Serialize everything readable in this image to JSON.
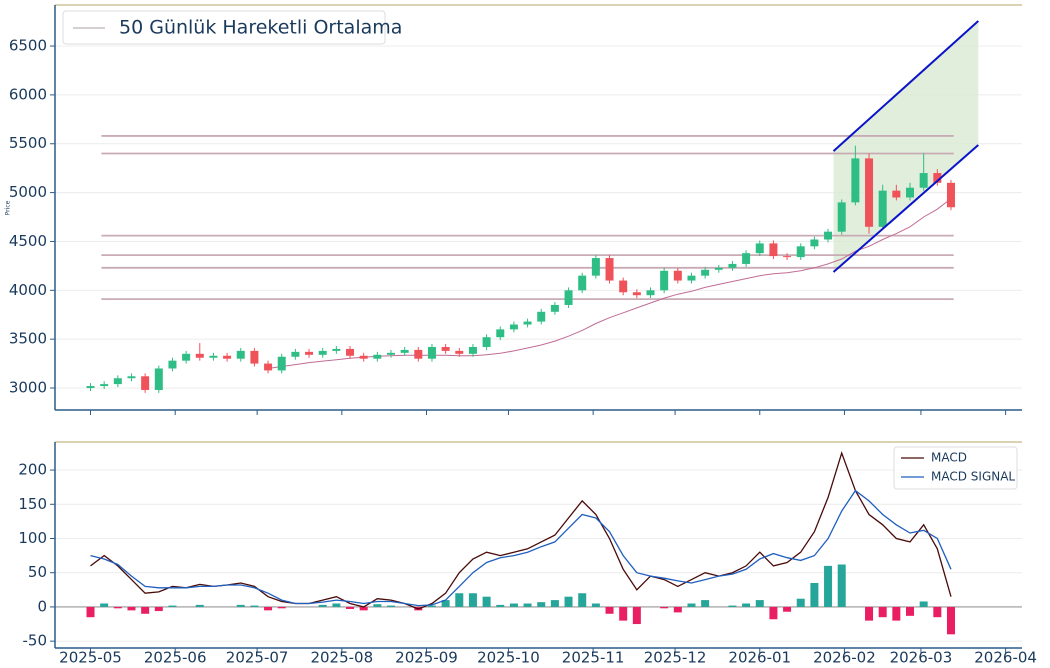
{
  "chart_data": [
    {
      "type": "candlestick",
      "ylabel": "Price",
      "xlim": [
        "2025-04-18",
        "2026-04-07"
      ],
      "xticks": [
        "2025-05",
        "2025-06",
        "2025-07",
        "2025-08",
        "2025-09",
        "2025-10",
        "2025-11",
        "2025-12",
        "2026-01",
        "2026-02",
        "2026-03",
        "2026-04"
      ],
      "ylim": [
        2775,
        6920
      ],
      "yticks": [
        3000,
        3500,
        4000,
        4500,
        5000,
        5500,
        6000,
        6500
      ],
      "grid": true,
      "up_color": "#2ebd85",
      "down_color": "#f0525a",
      "x": [
        "2025-05-01",
        "2025-05-06",
        "2025-05-11",
        "2025-05-16",
        "2025-05-21",
        "2025-05-26",
        "2025-05-31",
        "2025-06-05",
        "2025-06-10",
        "2025-06-15",
        "2025-06-20",
        "2025-06-25",
        "2025-06-30",
        "2025-07-05",
        "2025-07-10",
        "2025-07-15",
        "2025-07-20",
        "2025-07-25",
        "2025-07-30",
        "2025-08-04",
        "2025-08-09",
        "2025-08-14",
        "2025-08-19",
        "2025-08-24",
        "2025-08-29",
        "2025-09-03",
        "2025-09-08",
        "2025-09-13",
        "2025-09-18",
        "2025-09-23",
        "2025-09-28",
        "2025-10-03",
        "2025-10-08",
        "2025-10-13",
        "2025-10-18",
        "2025-10-23",
        "2025-10-28",
        "2025-11-02",
        "2025-11-07",
        "2025-11-12",
        "2025-11-17",
        "2025-11-22",
        "2025-11-27",
        "2025-12-02",
        "2025-12-07",
        "2025-12-12",
        "2025-12-17",
        "2025-12-22",
        "2025-12-27",
        "2026-01-01",
        "2026-01-06",
        "2026-01-11",
        "2026-01-16",
        "2026-01-21",
        "2026-01-26",
        "2026-01-31",
        "2026-02-05",
        "2026-02-10",
        "2026-02-15",
        "2026-02-20",
        "2026-02-25",
        "2026-03-02",
        "2026-03-07",
        "2026-03-12"
      ],
      "open": [
        3000,
        3020,
        3040,
        3100,
        3120,
        2980,
        3200,
        3280,
        3350,
        3310,
        3330,
        3300,
        3380,
        3250,
        3180,
        3320,
        3370,
        3340,
        3380,
        3400,
        3330,
        3300,
        3340,
        3360,
        3390,
        3300,
        3420,
        3380,
        3350,
        3420,
        3520,
        3600,
        3650,
        3680,
        3780,
        3850,
        4000,
        4150,
        4330,
        4100,
        3980,
        3950,
        4000,
        4200,
        4100,
        4150,
        4210,
        4230,
        4270,
        4380,
        4480,
        4350,
        4340,
        4450,
        4520,
        4600,
        4900,
        5350,
        4650,
        5020,
        4950,
        5050,
        5200,
        5100
      ],
      "high": [
        3050,
        3070,
        3130,
        3150,
        3150,
        3230,
        3310,
        3380,
        3460,
        3360,
        3360,
        3410,
        3410,
        3280,
        3350,
        3400,
        3400,
        3410,
        3430,
        3430,
        3360,
        3370,
        3390,
        3420,
        3420,
        3450,
        3450,
        3410,
        3450,
        3550,
        3630,
        3680,
        3710,
        3810,
        3880,
        4030,
        4180,
        4360,
        4360,
        4130,
        4010,
        4030,
        4230,
        4230,
        4180,
        4240,
        4260,
        4300,
        4410,
        4510,
        4510,
        4380,
        4480,
        4550,
        4630,
        4930,
        5480,
        5400,
        5080,
        5080,
        5100,
        5400,
        5240,
        5130
      ],
      "low": [
        2970,
        2990,
        3010,
        3070,
        2950,
        2950,
        3170,
        3250,
        3280,
        3280,
        3270,
        3270,
        3220,
        3150,
        3150,
        3290,
        3310,
        3310,
        3350,
        3300,
        3270,
        3270,
        3310,
        3330,
        3270,
        3270,
        3350,
        3320,
        3320,
        3390,
        3490,
        3570,
        3620,
        3650,
        3750,
        3820,
        3970,
        4120,
        4070,
        3950,
        3920,
        3920,
        3970,
        4070,
        4070,
        4120,
        4180,
        4200,
        4240,
        4350,
        4320,
        4310,
        4310,
        4420,
        4490,
        4570,
        4870,
        4580,
        4620,
        4920,
        4920,
        5020,
        5070,
        4820
      ],
      "close": [
        3020,
        3040,
        3100,
        3120,
        2980,
        3200,
        3280,
        3350,
        3310,
        3330,
        3300,
        3380,
        3250,
        3180,
        3320,
        3370,
        3340,
        3380,
        3400,
        3330,
        3300,
        3340,
        3360,
        3390,
        3300,
        3420,
        3380,
        3350,
        3420,
        3520,
        3600,
        3650,
        3680,
        3780,
        3850,
        4000,
        4150,
        4330,
        4100,
        3980,
        3950,
        4000,
        4200,
        4100,
        4150,
        4210,
        4230,
        4270,
        4380,
        4480,
        4350,
        4340,
        4450,
        4520,
        4600,
        4900,
        5350,
        4650,
        5020,
        4950,
        5050,
        5200,
        5100,
        4850
      ],
      "series": [
        {
          "name": "50 Günlük Hareketli Ortalama",
          "color": "#c06c96",
          "legend_color": "#c8c0c4",
          "values": [
            null,
            null,
            null,
            null,
            null,
            null,
            null,
            null,
            null,
            null,
            null,
            null,
            null,
            3200,
            3220,
            3240,
            3260,
            3275,
            3290,
            3305,
            3315,
            3325,
            3330,
            3335,
            3335,
            3335,
            3335,
            3330,
            3330,
            3340,
            3355,
            3380,
            3410,
            3440,
            3480,
            3530,
            3590,
            3660,
            3720,
            3770,
            3820,
            3870,
            3920,
            3960,
            3990,
            4030,
            4060,
            4090,
            4120,
            4150,
            4170,
            4180,
            4200,
            4230,
            4270,
            4320,
            4400,
            4450,
            4520,
            4580,
            4650,
            4750,
            4830,
            4940
          ]
        }
      ],
      "legend": "upper left",
      "hlines": {
        "values": [
          5580,
          5400,
          4560,
          4360,
          4230,
          3910
        ],
        "xrange": [
          "2025-05-05",
          "2026-03-13"
        ],
        "color": "#c9abb5"
      },
      "channel": {
        "x": [
          "2026-01-28",
          "2026-03-22"
        ],
        "upper": [
          5425,
          6756
        ],
        "lower": [
          4187,
          5487
        ],
        "color": "#0a14c8",
        "fill": "#d9ead3"
      }
    },
    {
      "type": "macd",
      "xlim": [
        "2025-04-18",
        "2026-04-07"
      ],
      "xticks": [
        "2025-05",
        "2025-06",
        "2025-07",
        "2025-08",
        "2025-09",
        "2025-10",
        "2025-11",
        "2025-12",
        "2026-01",
        "2026-02",
        "2026-03",
        "2026-04"
      ],
      "ylim": [
        -60,
        241
      ],
      "yticks": [
        -50,
        0,
        50,
        100,
        150,
        200
      ],
      "grid": true,
      "x": [
        "2025-05-01",
        "2025-05-06",
        "2025-05-11",
        "2025-05-16",
        "2025-05-21",
        "2025-05-26",
        "2025-05-31",
        "2025-06-05",
        "2025-06-10",
        "2025-06-15",
        "2025-06-20",
        "2025-06-25",
        "2025-06-30",
        "2025-07-05",
        "2025-07-10",
        "2025-07-15",
        "2025-07-20",
        "2025-07-25",
        "2025-07-30",
        "2025-08-04",
        "2025-08-09",
        "2025-08-14",
        "2025-08-19",
        "2025-08-24",
        "2025-08-29",
        "2025-09-03",
        "2025-09-08",
        "2025-09-13",
        "2025-09-18",
        "2025-09-23",
        "2025-09-28",
        "2025-10-03",
        "2025-10-08",
        "2025-10-13",
        "2025-10-18",
        "2025-10-23",
        "2025-10-28",
        "2025-11-02",
        "2025-11-07",
        "2025-11-12",
        "2025-11-17",
        "2025-11-22",
        "2025-11-27",
        "2025-12-02",
        "2025-12-07",
        "2025-12-12",
        "2025-12-17",
        "2025-12-22",
        "2025-12-27",
        "2026-01-01",
        "2026-01-06",
        "2026-01-11",
        "2026-01-16",
        "2026-01-21",
        "2026-01-26",
        "2026-01-31",
        "2026-02-05",
        "2026-02-10",
        "2026-02-15",
        "2026-02-20",
        "2026-02-25",
        "2026-03-02",
        "2026-03-07",
        "2026-03-12"
      ],
      "series": [
        {
          "name": "MACD",
          "color": "#4a0a0a",
          "values": [
            60,
            75,
            60,
            40,
            20,
            22,
            30,
            28,
            33,
            30,
            32,
            35,
            30,
            15,
            8,
            5,
            5,
            10,
            15,
            5,
            0,
            12,
            10,
            5,
            -3,
            5,
            20,
            50,
            70,
            80,
            75,
            80,
            85,
            95,
            105,
            130,
            155,
            135,
            100,
            55,
            25,
            45,
            40,
            30,
            40,
            50,
            45,
            50,
            60,
            80,
            60,
            65,
            80,
            110,
            160,
            225,
            170,
            135,
            120,
            100,
            95,
            120,
            85,
            15
          ]
        },
        {
          "name": "MACD SIGNAL",
          "color": "#1f5fbf",
          "values": [
            75,
            70,
            62,
            45,
            30,
            28,
            28,
            28,
            30,
            30,
            32,
            32,
            28,
            20,
            10,
            5,
            5,
            7,
            10,
            8,
            5,
            8,
            8,
            5,
            2,
            3,
            10,
            30,
            50,
            65,
            72,
            75,
            80,
            88,
            95,
            115,
            135,
            130,
            110,
            75,
            50,
            45,
            42,
            38,
            35,
            40,
            45,
            48,
            55,
            70,
            78,
            72,
            68,
            75,
            100,
            140,
            170,
            155,
            135,
            120,
            108,
            112,
            100,
            55
          ]
        }
      ],
      "histogram": {
        "pos_color": "#26a69a",
        "neg_color": "#e91e63",
        "values": [
          -15,
          5,
          -2,
          -5,
          -10,
          -6,
          2,
          0,
          3,
          0,
          0,
          3,
          2,
          -5,
          -2,
          0,
          0,
          3,
          5,
          -3,
          -5,
          4,
          2,
          0,
          -5,
          2,
          10,
          20,
          20,
          15,
          3,
          5,
          5,
          7,
          10,
          15,
          20,
          5,
          -10,
          -20,
          -25,
          0,
          -2,
          -8,
          5,
          10,
          0,
          2,
          5,
          10,
          -18,
          -7,
          12,
          35,
          60,
          62,
          0,
          -20,
          -15,
          -20,
          -13,
          8,
          -15,
          -40
        ]
      },
      "legend": "upper right"
    }
  ]
}
